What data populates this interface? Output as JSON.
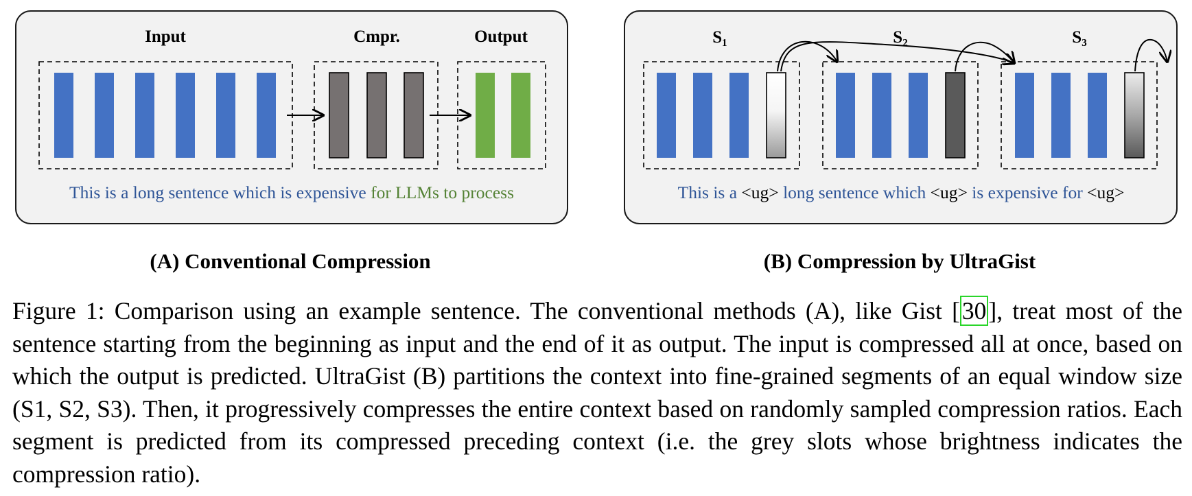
{
  "colors": {
    "panel_bg": "#f2f2f2",
    "token_blue": "#4472c4",
    "token_dark": "#767171",
    "token_green": "#70ad47",
    "text_blue": "#2f5597",
    "text_green": "#548235"
  },
  "panel_a": {
    "headers": [
      "Input",
      "Cmpr.",
      "Output"
    ],
    "sentence_input": "This is a long sentence which is expensive",
    "sentence_output": "for LLMs to process",
    "subtitle": "(A) Conventional Compression"
  },
  "panel_b": {
    "segment_labels": [
      "S₁",
      "S₂",
      "S₃"
    ],
    "sentence_parts": [
      {
        "text": "This is a",
        "kind": "blue"
      },
      {
        "text": "<ug>",
        "kind": "token"
      },
      {
        "text": "long sentence which",
        "kind": "blue"
      },
      {
        "text": "<ug>",
        "kind": "token"
      },
      {
        "text": "is expensive for",
        "kind": "blue"
      },
      {
        "text": "<ug>",
        "kind": "token"
      }
    ],
    "subtitle": "(B) Compression by UltraGist"
  },
  "caption": {
    "before_ref": "Figure 1: Comparison using an example sentence. The conventional methods (A), like Gist [",
    "ref": "30",
    "after_ref": "], treat most of the sentence starting from the beginning as input and the end of it as output. The input is compressed all at once, based on which the output is predicted. UltraGist (B) partitions the context into fine-grained segments of an equal window size (S1, S2, S3). Then, it progressively compresses the entire context based on randomly sampled compression ratios. Each segment is predicted from its compressed preceding context (i.e. the grey slots whose brightness indicates the compression ratio)."
  }
}
